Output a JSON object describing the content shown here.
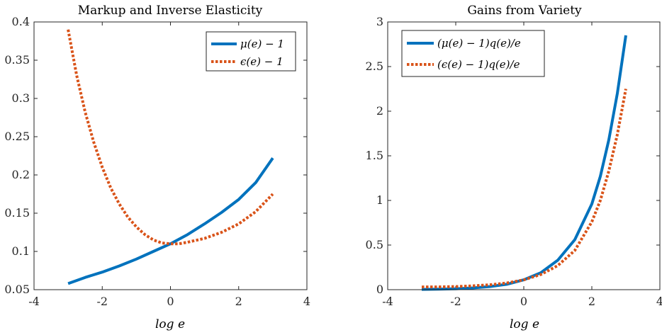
{
  "chart_data": [
    {
      "type": "line",
      "title": "Markup and Inverse Elasticity",
      "xlabel": "log e",
      "ylabel": "",
      "xlim": [
        -4,
        4
      ],
      "ylim": [
        0.05,
        0.4
      ],
      "xticks": [
        -4,
        -2,
        0,
        2,
        4
      ],
      "xtick_labels": [
        "-4",
        "-2",
        "0",
        "2",
        "4"
      ],
      "yticks": [
        0.05,
        0.1,
        0.15,
        0.2,
        0.25,
        0.3,
        0.35,
        0.4
      ],
      "ytick_labels": [
        "0.05",
        "0.1",
        "0.15",
        "0.2",
        "0.25",
        "0.3",
        "0.35",
        "0.4"
      ],
      "grid": false,
      "legend_position": "top-right",
      "series": [
        {
          "name": "μ(e) − 1",
          "color": "#0072BD",
          "style": "solid",
          "x": [
            -3,
            -2.5,
            -2,
            -1.5,
            -1,
            -0.5,
            0,
            0.5,
            1,
            1.5,
            2,
            2.5,
            3
          ],
          "y": [
            0.058,
            0.066,
            0.073,
            0.081,
            0.09,
            0.1,
            0.11,
            0.122,
            0.136,
            0.151,
            0.168,
            0.19,
            0.222
          ]
        },
        {
          "name": "ϵ(e) − 1",
          "color": "#D95319",
          "style": "dotted",
          "x": [
            -3,
            -2.75,
            -2.5,
            -2.25,
            -2,
            -1.75,
            -1.5,
            -1.25,
            -1,
            -0.75,
            -0.5,
            -0.25,
            0,
            0.25,
            0.5,
            1,
            1.5,
            2,
            2.5,
            3
          ],
          "y": [
            0.39,
            0.33,
            0.282,
            0.243,
            0.21,
            0.183,
            0.162,
            0.145,
            0.132,
            0.122,
            0.115,
            0.111,
            0.11,
            0.11,
            0.112,
            0.117,
            0.125,
            0.136,
            0.152,
            0.175
          ]
        }
      ]
    },
    {
      "type": "line",
      "title": "Gains from Variety",
      "xlabel": "log e",
      "ylabel": "",
      "xlim": [
        -4,
        4
      ],
      "ylim": [
        0,
        3
      ],
      "xticks": [
        -4,
        -2,
        0,
        2,
        4
      ],
      "xtick_labels": [
        "-4",
        "-2",
        "0",
        "2",
        "4"
      ],
      "yticks": [
        0,
        0.5,
        1,
        1.5,
        2,
        2.5,
        3
      ],
      "ytick_labels": [
        "0",
        "0.5",
        "1",
        "1.5",
        "2",
        "2.5",
        "3"
      ],
      "grid": false,
      "legend_position": "top-left",
      "series": [
        {
          "name": "(μ(e) − 1)q(e)/e",
          "color": "#0072BD",
          "style": "solid",
          "x": [
            -3,
            -2.5,
            -2,
            -1.5,
            -1,
            -0.5,
            0,
            0.5,
            1,
            1.5,
            2,
            2.25,
            2.5,
            2.75,
            3
          ],
          "y": [
            0.003,
            0.006,
            0.01,
            0.02,
            0.035,
            0.06,
            0.11,
            0.19,
            0.33,
            0.56,
            0.96,
            1.27,
            1.68,
            2.2,
            2.85
          ]
        },
        {
          "name": "(ϵ(e) − 1)q(e)/e",
          "color": "#D95319",
          "style": "dotted",
          "x": [
            -3,
            -2.5,
            -2,
            -1.5,
            -1,
            -0.5,
            0,
            0.5,
            1,
            1.5,
            2,
            2.25,
            2.5,
            2.75,
            3
          ],
          "y": [
            0.03,
            0.031,
            0.035,
            0.043,
            0.055,
            0.075,
            0.11,
            0.17,
            0.27,
            0.44,
            0.76,
            1.0,
            1.33,
            1.74,
            2.25
          ]
        }
      ]
    }
  ]
}
